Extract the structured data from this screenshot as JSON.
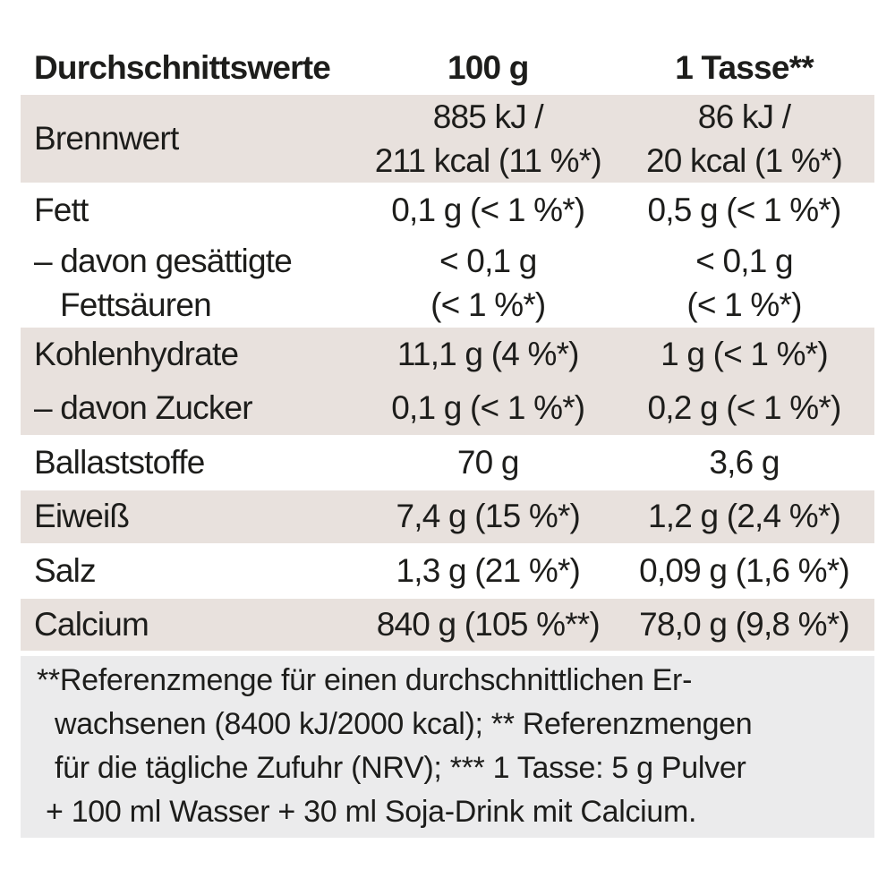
{
  "colors": {
    "row_shade": "#e8e1dd",
    "footnote_bg": "#ebebec",
    "text": "#1d1d1b"
  },
  "table": {
    "header": {
      "label": "Durchschnittswerte",
      "per_100g": "100 g",
      "per_tasse": "1 Tasse**"
    },
    "rows": {
      "brennwert": {
        "label": "Brennwert",
        "v100_line1": "885 kJ /",
        "v100_line2": "211 kcal (11 %*)",
        "vtasse_line1": "86 kJ /",
        "vtasse_line2": "20 kcal (1 %*)"
      },
      "fett": {
        "label": "Fett",
        "v100": "0,1 g (< 1 %*)",
        "vtasse": "0,5 g (< 1 %*)"
      },
      "fettsaeuren": {
        "label_line1": "– davon gesättigte",
        "label_line2": "Fettsäuren",
        "v100_line1": "< 0,1 g",
        "v100_line2": "(< 1 %*)",
        "vtasse_line1": "< 0,1 g",
        "vtasse_line2": "(< 1 %*)"
      },
      "kohlenhydrate": {
        "label": "Kohlenhydrate",
        "v100": "11,1 g (4 %*)",
        "vtasse": "1 g (< 1 %*)"
      },
      "zucker": {
        "label": "– davon Zucker",
        "v100": "0,1 g (< 1 %*)",
        "vtasse": "0,2 g (< 1 %*)"
      },
      "ballaststoffe": {
        "label": "Ballaststoffe",
        "v100": "70 g",
        "vtasse": "3,6 g"
      },
      "eiweiss": {
        "label": "Eiweiß",
        "v100": "7,4 g (15 %*)",
        "vtasse": "1,2 g (2,4 %*)"
      },
      "salz": {
        "label": "Salz",
        "v100": "1,3 g (21 %*)",
        "vtasse": "0,09 g (1,6 %*)"
      },
      "calcium": {
        "label": "Calcium",
        "v100": "840 g (105 %**)",
        "vtasse": "78,0 g (9,8 %*)"
      }
    }
  },
  "footnote": {
    "line1": "**Referenzmenge für einen durchschnittlichen Er-",
    "line2": "wachsenen (8400 kJ/2000 kcal); ** Referenzmengen",
    "line3": "für die tägliche Zufuhr (NRV); *** 1 Tasse: 5 g Pulver",
    "line4": "+ 100 ml Wasser + 30 ml Soja-Drink mit Calcium."
  }
}
